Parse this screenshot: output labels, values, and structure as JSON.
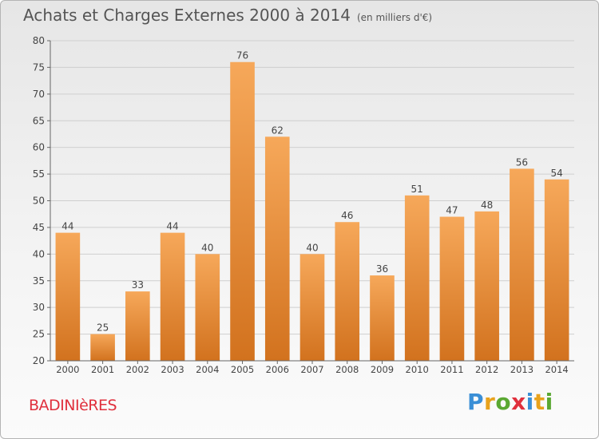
{
  "header": {
    "title": "Achats et Charges Externes 2000 à 2014",
    "subtitle": "(en milliers d'€)"
  },
  "footer": {
    "commune": "BADINIèRES",
    "brand_letters": [
      "P",
      "r",
      "o",
      "x",
      "i",
      "t",
      "i"
    ],
    "brand_colors": [
      "#3a8fd6",
      "#e8a21c",
      "#5aa832",
      "#e0303d",
      "#3a8fd6",
      "#e8a21c",
      "#5aa832"
    ]
  },
  "chart_data": {
    "type": "bar",
    "categories": [
      "2000",
      "2001",
      "2002",
      "2003",
      "2004",
      "2005",
      "2006",
      "2007",
      "2008",
      "2009",
      "2010",
      "2011",
      "2012",
      "2013",
      "2014"
    ],
    "values": [
      44,
      25,
      33,
      44,
      40,
      76,
      62,
      40,
      46,
      36,
      51,
      47,
      48,
      56,
      54
    ],
    "ylim": [
      20,
      80
    ],
    "yticks": [
      20,
      25,
      30,
      35,
      40,
      45,
      50,
      55,
      60,
      65,
      70,
      75,
      80
    ],
    "grid": true,
    "bar_color_top": "#f6a85a",
    "bar_color_bottom": "#d2721e"
  }
}
